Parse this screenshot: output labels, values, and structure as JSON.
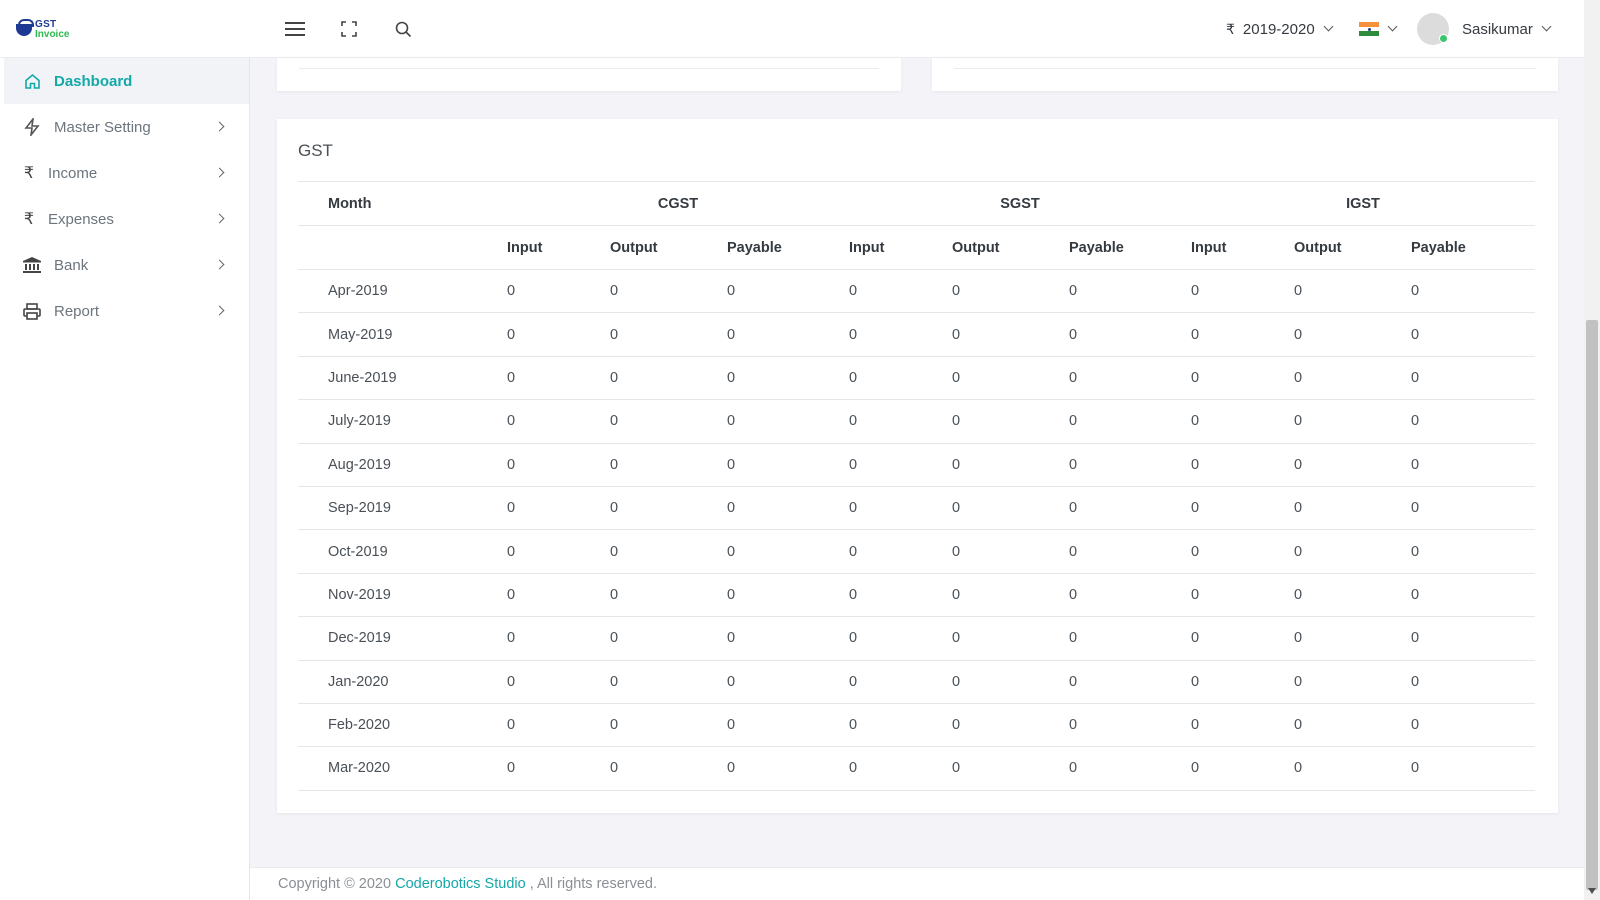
{
  "app": {
    "logo_top": "GST",
    "logo_bottom": "Invoice"
  },
  "header": {
    "currency_symbol": "₹",
    "financial_year": "2019-2020",
    "language_flag": "india-flag-icon",
    "username": "Sasikumar"
  },
  "sidebar": {
    "items": [
      {
        "label": "Dashboard",
        "icon": "home-icon",
        "active": true
      },
      {
        "label": "Master Setting",
        "icon": "bolt-icon"
      },
      {
        "label": "Income",
        "icon": "rupee-icon"
      },
      {
        "label": "Expenses",
        "icon": "rupee-icon"
      },
      {
        "label": "Bank",
        "icon": "bank-icon"
      },
      {
        "label": "Report",
        "icon": "printer-icon"
      }
    ]
  },
  "gst_card": {
    "title": "GST",
    "header_groups": {
      "month": "Month",
      "cgst": "CGST",
      "sgst": "SGST",
      "igst": "IGST"
    },
    "sub_headers": [
      "Input",
      "Output",
      "Payable",
      "Input",
      "Output",
      "Payable",
      "Input",
      "Output",
      "Payable"
    ],
    "rows": [
      {
        "month": "Apr-2019",
        "values": [
          "0",
          "0",
          "0",
          "0",
          "0",
          "0",
          "0",
          "0",
          "0"
        ]
      },
      {
        "month": "May-2019",
        "values": [
          "0",
          "0",
          "0",
          "0",
          "0",
          "0",
          "0",
          "0",
          "0"
        ]
      },
      {
        "month": "June-2019",
        "values": [
          "0",
          "0",
          "0",
          "0",
          "0",
          "0",
          "0",
          "0",
          "0"
        ]
      },
      {
        "month": "July-2019",
        "values": [
          "0",
          "0",
          "0",
          "0",
          "0",
          "0",
          "0",
          "0",
          "0"
        ]
      },
      {
        "month": "Aug-2019",
        "values": [
          "0",
          "0",
          "0",
          "0",
          "0",
          "0",
          "0",
          "0",
          "0"
        ]
      },
      {
        "month": "Sep-2019",
        "values": [
          "0",
          "0",
          "0",
          "0",
          "0",
          "0",
          "0",
          "0",
          "0"
        ]
      },
      {
        "month": "Oct-2019",
        "values": [
          "0",
          "0",
          "0",
          "0",
          "0",
          "0",
          "0",
          "0",
          "0"
        ]
      },
      {
        "month": "Nov-2019",
        "values": [
          "0",
          "0",
          "0",
          "0",
          "0",
          "0",
          "0",
          "0",
          "0"
        ]
      },
      {
        "month": "Dec-2019",
        "values": [
          "0",
          "0",
          "0",
          "0",
          "0",
          "0",
          "0",
          "0",
          "0"
        ]
      },
      {
        "month": "Jan-2020",
        "values": [
          "0",
          "0",
          "0",
          "0",
          "0",
          "0",
          "0",
          "0",
          "0"
        ]
      },
      {
        "month": "Feb-2020",
        "values": [
          "0",
          "0",
          "0",
          "0",
          "0",
          "0",
          "0",
          "0",
          "0"
        ]
      },
      {
        "month": "Mar-2020",
        "values": [
          "0",
          "0",
          "0",
          "0",
          "0",
          "0",
          "0",
          "0",
          "0"
        ]
      }
    ]
  },
  "footer": {
    "prefix": "Copyright © 2020 ",
    "company": "Coderobotics Studio",
    "suffix": " , All rights reserved."
  },
  "colors": {
    "accent": "#14a8a8",
    "online": "#3cc66b",
    "logo_blue": "#1f3a93",
    "logo_green": "#2db84f"
  }
}
